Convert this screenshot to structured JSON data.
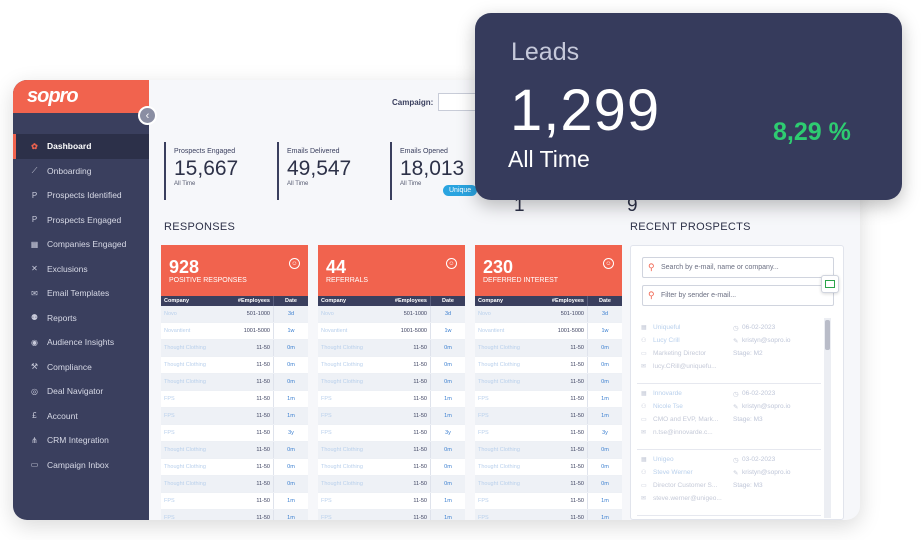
{
  "brand": {
    "logo": "sopro",
    "accent": "#f1634e",
    "sidebar_bg": "#3a3f5e"
  },
  "sidebar": {
    "items": [
      {
        "label": "Dashboard",
        "icon": "palette-icon",
        "active": true
      },
      {
        "label": "Onboarding",
        "icon": "chart-line-icon"
      },
      {
        "label": "Prospects Identified",
        "icon": "p-circle-icon"
      },
      {
        "label": "Prospects Engaged",
        "icon": "p-circle-icon"
      },
      {
        "label": "Companies Engaged",
        "icon": "building-icon"
      },
      {
        "label": "Exclusions",
        "icon": "user-x-icon"
      },
      {
        "label": "Email Templates",
        "icon": "envelope-icon"
      },
      {
        "label": "Reports",
        "icon": "people-icon"
      },
      {
        "label": "Audience Insights",
        "icon": "target-icon"
      },
      {
        "label": "Compliance",
        "icon": "gavel-icon"
      },
      {
        "label": "Deal Navigator",
        "icon": "compass-icon"
      },
      {
        "label": "Account",
        "icon": "pound-icon"
      },
      {
        "label": "CRM Integration",
        "icon": "sitemap-icon"
      },
      {
        "label": "Campaign Inbox",
        "icon": "inbox-icon"
      }
    ]
  },
  "campaign": {
    "label": "Campaign:",
    "value": ""
  },
  "stats": [
    {
      "label": "Prospects Engaged",
      "value": "15,667",
      "sub": "All Time"
    },
    {
      "label": "Emails Delivered",
      "value": "49,547",
      "sub": "All Time"
    },
    {
      "label": "Emails Opened",
      "value": "18,013",
      "sub": "All Time"
    }
  ],
  "unique_badge": "Unique",
  "partial_stats": [
    "1",
    "9"
  ],
  "responses_title": "RESPONSES",
  "recent_title": "RECENT PROSPECTS",
  "table_headers": {
    "company": "Company",
    "employees": "#Employees",
    "date": "Date"
  },
  "cards": [
    {
      "number": "928",
      "caption": "POSITIVE RESPONSES",
      "rows": [
        [
          "Novo",
          "501-1000",
          "3d"
        ],
        [
          "Novantient",
          "1001-5000",
          "1w"
        ],
        [
          "Thought Clothing",
          "11-50",
          "0m"
        ],
        [
          "Thought Clothing",
          "11-50",
          "0m"
        ],
        [
          "Thought Clothing",
          "11-50",
          "0m"
        ],
        [
          "FPS",
          "11-50",
          "1m"
        ],
        [
          "FPS",
          "11-50",
          "1m"
        ],
        [
          "FPS",
          "11-50",
          "3y"
        ],
        [
          "Thought Clothing",
          "11-50",
          "0m"
        ],
        [
          "Thought Clothing",
          "11-50",
          "0m"
        ],
        [
          "Thought Clothing",
          "11-50",
          "0m"
        ],
        [
          "FPS",
          "11-50",
          "1m"
        ],
        [
          "FPS",
          "11-50",
          "1m"
        ]
      ]
    },
    {
      "number": "44",
      "caption": "REFERRALS",
      "rows": [
        [
          "Novo",
          "501-1000",
          "3d"
        ],
        [
          "Novantient",
          "1001-5000",
          "1w"
        ],
        [
          "Thought Clothing",
          "11-50",
          "0m"
        ],
        [
          "Thought Clothing",
          "11-50",
          "0m"
        ],
        [
          "Thought Clothing",
          "11-50",
          "0m"
        ],
        [
          "FPS",
          "11-50",
          "1m"
        ],
        [
          "FPS",
          "11-50",
          "1m"
        ],
        [
          "FPS",
          "11-50",
          "3y"
        ],
        [
          "Thought Clothing",
          "11-50",
          "0m"
        ],
        [
          "Thought Clothing",
          "11-50",
          "0m"
        ],
        [
          "Thought Clothing",
          "11-50",
          "0m"
        ],
        [
          "FPS",
          "11-50",
          "1m"
        ],
        [
          "FPS",
          "11-50",
          "1m"
        ]
      ]
    },
    {
      "number": "230",
      "caption": "DEFERRED INTEREST",
      "rows": [
        [
          "Novo",
          "501-1000",
          "3d"
        ],
        [
          "Novantient",
          "1001-5000",
          "1w"
        ],
        [
          "Thought Clothing",
          "11-50",
          "0m"
        ],
        [
          "Thought Clothing",
          "11-50",
          "0m"
        ],
        [
          "Thought Clothing",
          "11-50",
          "0m"
        ],
        [
          "FPS",
          "11-50",
          "1m"
        ],
        [
          "FPS",
          "11-50",
          "1m"
        ],
        [
          "FPS",
          "11-50",
          "3y"
        ],
        [
          "Thought Clothing",
          "11-50",
          "0m"
        ],
        [
          "Thought Clothing",
          "11-50",
          "0m"
        ],
        [
          "Thought Clothing",
          "11-50",
          "0m"
        ],
        [
          "FPS",
          "11-50",
          "1m"
        ],
        [
          "FPS",
          "11-50",
          "1m"
        ]
      ]
    }
  ],
  "recent": {
    "search_placeholder": "Search by e-mail, name or company...",
    "filter_placeholder": "Filter by sender e-mail...",
    "prospects": [
      {
        "company": "Uniqueful",
        "name": "Lucy Crill",
        "title": "Marketing Director",
        "email": "lucy.CRill@uniquefu...",
        "date": "06-02-2023",
        "sender": "kristyn@sopro.io",
        "stage": "Stage: M2"
      },
      {
        "company": "Innovarde",
        "name": "Nicole Tse",
        "title": "CMO and EVP, Mark...",
        "email": "n.tse@innovarde.c...",
        "date": "06-02-2023",
        "sender": "kristyn@sopro.io",
        "stage": "Stage: M3"
      },
      {
        "company": "Unigeo",
        "name": "Steve Werner",
        "title": "Director Customer S...",
        "email": "steve.werner@unigeo...",
        "date": "03-02-2023",
        "sender": "kristyn@sopro.io",
        "stage": "Stage: M3"
      }
    ]
  },
  "leads": {
    "title": "Leads",
    "value": "1,299",
    "period": "All Time",
    "change": "8,29 %",
    "change_color": "#2ecc71"
  }
}
